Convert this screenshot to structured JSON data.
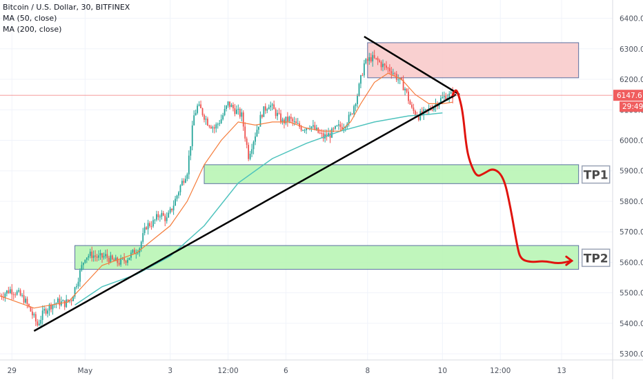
{
  "legend": {
    "title": "Bitcoin / U.S. Dollar, 30, BITFINEX",
    "ma50": "MA (50, close)",
    "ma200": "MA (200, close)"
  },
  "colors": {
    "up": "#26a69a",
    "down": "#ef5350",
    "ma50": "#f57c3a",
    "ma200": "#4ec3bd",
    "trendline": "#000000",
    "forecast": "#e0140e",
    "support_zone": "#b5f5b0",
    "resistance_zone": "#f8c8c8",
    "price_label": "#f05d5e"
  },
  "chart_data": {
    "type": "candlestick",
    "symbol": "Bitcoin / U.S. Dollar",
    "interval": "30",
    "exchange": "BITFINEX",
    "ylim": [
      5280,
      6460
    ],
    "y_ticks": [
      5300,
      5400,
      5500,
      5600,
      5700,
      5800,
      5900,
      6000,
      6100,
      6200,
      6300,
      6400
    ],
    "y_tick_labels": [
      "5300.0",
      "5400.0",
      "5500.0",
      "5600.0",
      "5700.0",
      "5800.0",
      "5900.0",
      "6000.0",
      "6100.0",
      "6200.0",
      "6300.0",
      "6400.0"
    ],
    "x_tick_labels": [
      "29",
      "May",
      "3",
      "12:00",
      "6",
      "8",
      "10",
      "12:00",
      "13"
    ],
    "last_price": "6147.6",
    "countdown": "29:49",
    "price_path": [
      [
        0,
        5490
      ],
      [
        3,
        5510
      ],
      [
        5,
        5500
      ],
      [
        7,
        5480
      ],
      [
        9,
        5440
      ],
      [
        11,
        5395
      ],
      [
        13,
        5440
      ],
      [
        15,
        5460
      ],
      [
        17,
        5470
      ],
      [
        19,
        5465
      ],
      [
        21,
        5480
      ],
      [
        23,
        5550
      ],
      [
        25,
        5620
      ],
      [
        27,
        5625
      ],
      [
        29,
        5615
      ],
      [
        31,
        5620
      ],
      [
        33,
        5605
      ],
      [
        35,
        5600
      ],
      [
        37,
        5610
      ],
      [
        39,
        5630
      ],
      [
        41,
        5650
      ],
      [
        43,
        5720
      ],
      [
        45,
        5730
      ],
      [
        47,
        5760
      ],
      [
        49,
        5740
      ],
      [
        51,
        5790
      ],
      [
        53,
        5850
      ],
      [
        55,
        5900
      ],
      [
        57,
        6080
      ],
      [
        58,
        6110
      ],
      [
        59,
        6100
      ],
      [
        61,
        6060
      ],
      [
        63,
        6040
      ],
      [
        65,
        6070
      ],
      [
        67,
        6120
      ],
      [
        69,
        6100
      ],
      [
        71,
        6080
      ],
      [
        73,
        5950
      ],
      [
        75,
        6020
      ],
      [
        77,
        6090
      ],
      [
        79,
        6120
      ],
      [
        81,
        6090
      ],
      [
        83,
        6060
      ],
      [
        85,
        6070
      ],
      [
        87,
        6050
      ],
      [
        89,
        6040
      ],
      [
        91,
        6050
      ],
      [
        93,
        6030
      ],
      [
        95,
        6010
      ],
      [
        97,
        6020
      ],
      [
        99,
        6040
      ],
      [
        101,
        6050
      ],
      [
        103,
        6080
      ],
      [
        105,
        6150
      ],
      [
        107,
        6250
      ],
      [
        109,
        6270
      ],
      [
        111,
        6260
      ],
      [
        113,
        6240
      ],
      [
        115,
        6230
      ],
      [
        117,
        6200
      ],
      [
        119,
        6170
      ],
      [
        121,
        6100
      ],
      [
        123,
        6080
      ],
      [
        125,
        6090
      ],
      [
        127,
        6110
      ],
      [
        129,
        6130
      ],
      [
        131,
        6145
      ],
      [
        133,
        6148
      ]
    ],
    "ma50": [
      [
        0,
        5490
      ],
      [
        10,
        5450
      ],
      [
        20,
        5470
      ],
      [
        30,
        5590
      ],
      [
        40,
        5630
      ],
      [
        50,
        5720
      ],
      [
        55,
        5800
      ],
      [
        60,
        5920
      ],
      [
        65,
        6000
      ],
      [
        70,
        6060
      ],
      [
        75,
        6050
      ],
      [
        80,
        6060
      ],
      [
        85,
        6060
      ],
      [
        90,
        6040
      ],
      [
        95,
        6030
      ],
      [
        100,
        6030
      ],
      [
        103,
        6060
      ],
      [
        106,
        6120
      ],
      [
        110,
        6190
      ],
      [
        114,
        6220
      ],
      [
        118,
        6200
      ],
      [
        122,
        6150
      ],
      [
        126,
        6120
      ],
      [
        130,
        6120
      ],
      [
        133,
        6125
      ]
    ],
    "ma200": [
      [
        22,
        5460
      ],
      [
        30,
        5520
      ],
      [
        40,
        5560
      ],
      [
        50,
        5620
      ],
      [
        60,
        5720
      ],
      [
        70,
        5860
      ],
      [
        80,
        5940
      ],
      [
        90,
        5990
      ],
      [
        100,
        6030
      ],
      [
        110,
        6060
      ],
      [
        120,
        6080
      ],
      [
        126,
        6085
      ],
      [
        130,
        6090
      ]
    ],
    "zones": [
      {
        "kind": "resistance",
        "x0": 108,
        "x1": 170,
        "y0": 6205,
        "y1": 6320
      },
      {
        "kind": "support",
        "x0": 60,
        "x1": 170,
        "y0": 5858,
        "y1": 5920,
        "label": "TP1"
      },
      {
        "kind": "support",
        "x0": 22,
        "x1": 170,
        "y0": 5577,
        "y1": 5655,
        "label": "TP2"
      }
    ],
    "trendlines": [
      {
        "name": "ascending support",
        "from": [
          10,
          5375
        ],
        "to": [
          134,
          6150
        ]
      },
      {
        "name": "descending resistance",
        "from": [
          107,
          6340
        ],
        "to": [
          135,
          6150
        ]
      }
    ],
    "forecast_path": [
      [
        133,
        6148
      ],
      [
        134,
        6170
      ],
      [
        135,
        6140
      ],
      [
        136,
        6090
      ],
      [
        137,
        5980
      ],
      [
        138,
        5930
      ],
      [
        140,
        5880
      ],
      [
        142,
        5890
      ],
      [
        145,
        5910
      ],
      [
        148,
        5880
      ],
      [
        150,
        5780
      ],
      [
        152,
        5650
      ],
      [
        153,
        5610
      ],
      [
        156,
        5600
      ],
      [
        160,
        5605
      ],
      [
        164,
        5595
      ],
      [
        168,
        5605
      ]
    ],
    "targets": [
      "TP1",
      "TP2"
    ]
  }
}
